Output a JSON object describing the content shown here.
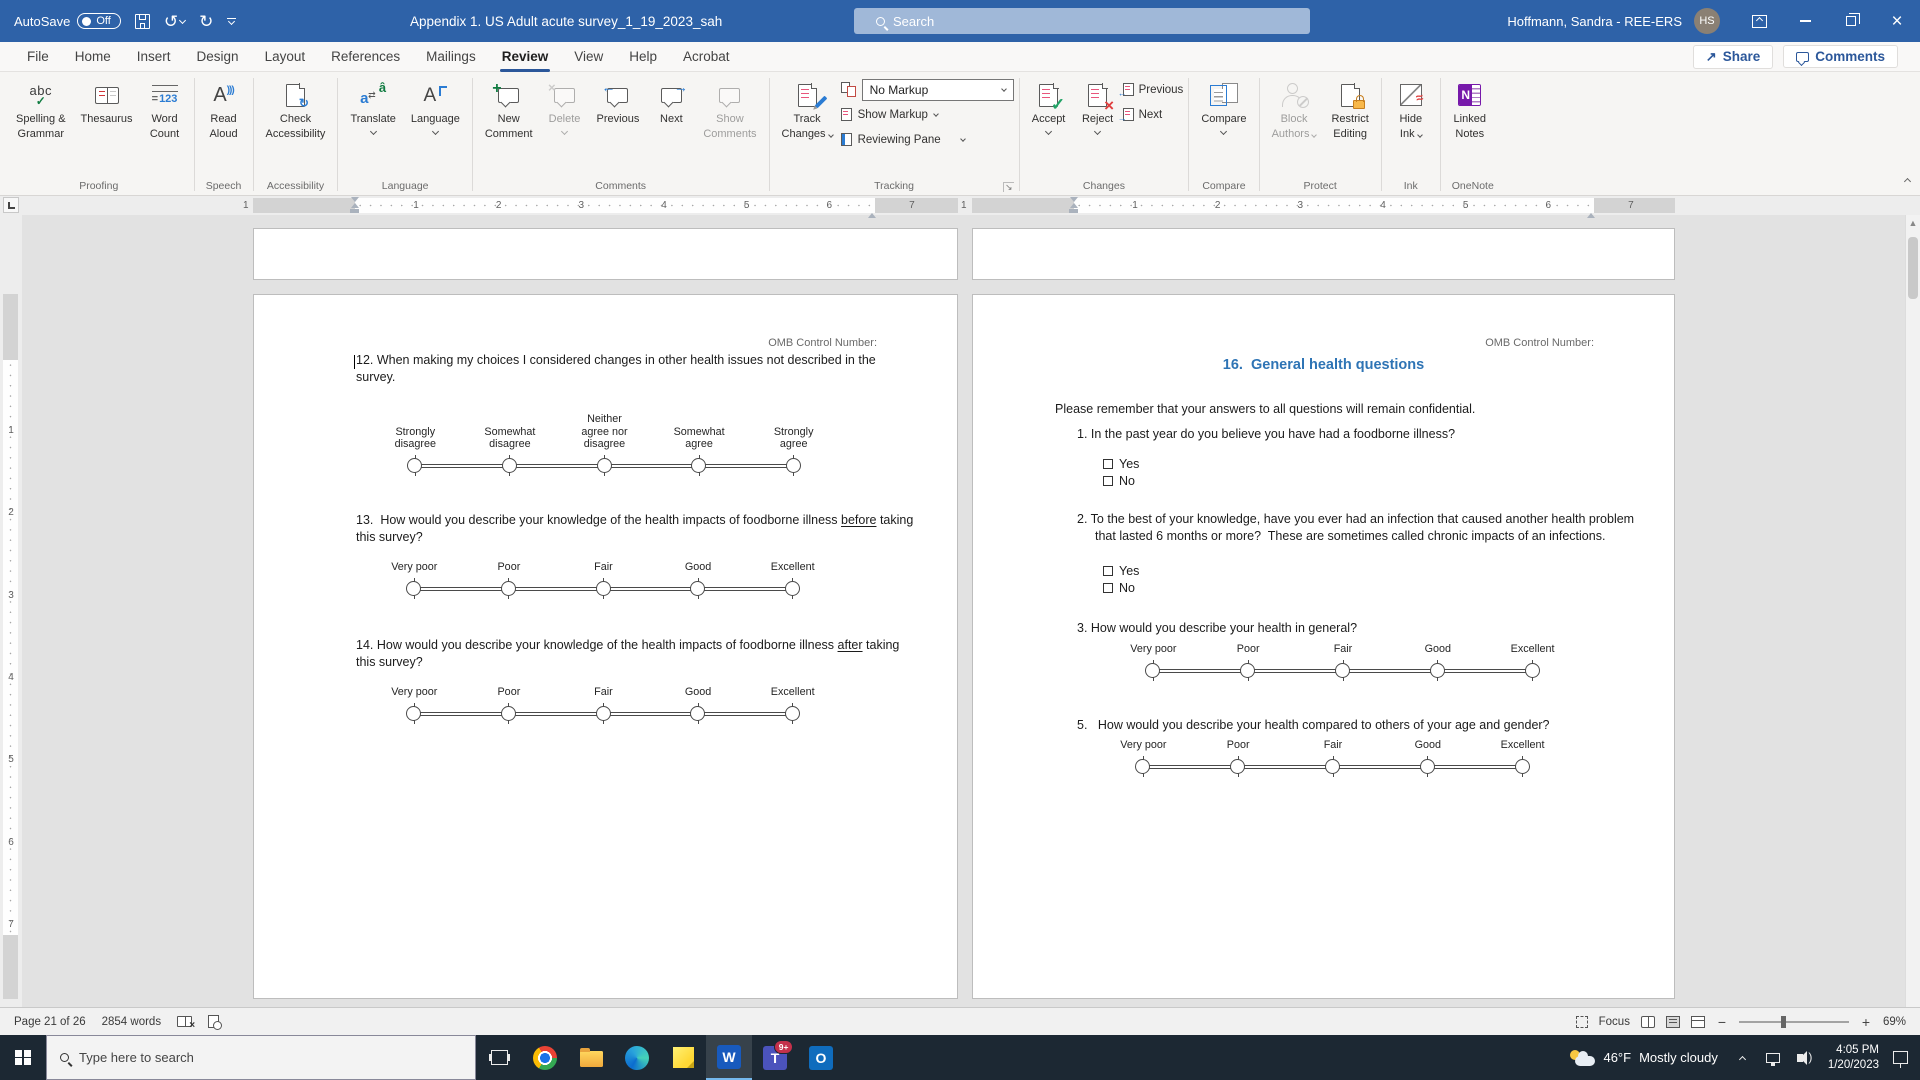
{
  "title_bar": {
    "autosave_label": "AutoSave",
    "autosave_state": "Off",
    "doc_title": "Appendix 1. US Adult acute survey_1_19_2023_sah",
    "search_placeholder": "Search",
    "user_name": "Hoffmann, Sandra - REE-ERS",
    "user_initials": "HS"
  },
  "ribbon": {
    "tabs": [
      "File",
      "Home",
      "Insert",
      "Design",
      "Layout",
      "References",
      "Mailings",
      "Review",
      "View",
      "Help",
      "Acrobat"
    ],
    "active_tab": "Review",
    "share_label": "Share",
    "comments_label": "Comments",
    "proofing": {
      "label": "Proofing",
      "spelling1": "Spelling &",
      "spelling2": "Grammar",
      "thesaurus": "Thesaurus",
      "word_count1": "Word",
      "word_count2": "Count"
    },
    "speech": {
      "label": "Speech",
      "read_aloud1": "Read",
      "read_aloud2": "Aloud"
    },
    "accessibility": {
      "label": "Accessibility",
      "check1": "Check",
      "check2": "Accessibility"
    },
    "language": {
      "label": "Language",
      "translate": "Translate",
      "language": "Language"
    },
    "comments": {
      "label": "Comments",
      "new1": "New",
      "new2": "Comment",
      "delete": "Delete",
      "previous": "Previous",
      "next": "Next",
      "show1": "Show",
      "show2": "Comments"
    },
    "tracking": {
      "label": "Tracking",
      "track1": "Track",
      "track2": "Changes",
      "markup_view": "No Markup",
      "show_markup": "Show Markup",
      "reviewing_pane": "Reviewing Pane"
    },
    "changes": {
      "label": "Changes",
      "accept": "Accept",
      "reject": "Reject",
      "previous": "Previous",
      "next": "Next"
    },
    "compare": {
      "label": "Compare",
      "compare": "Compare"
    },
    "protect": {
      "label": "Protect",
      "block1": "Block",
      "block2": "Authors",
      "restrict1": "Restrict",
      "restrict2": "Editing"
    },
    "ink": {
      "label": "Ink",
      "hide1": "Hide",
      "hide2": "Ink"
    },
    "onenote": {
      "label": "OneNote",
      "linked1": "Linked",
      "linked2": "Notes"
    }
  },
  "ruler": {
    "h_numbers": [
      "1",
      "2",
      "3",
      "4",
      "5",
      "6",
      "7"
    ],
    "margin_number": "1",
    "v_numbers": [
      "1",
      "2",
      "3",
      "4",
      "5",
      "6",
      "7"
    ]
  },
  "document": {
    "left_page": {
      "omb": "OMB Control Number:",
      "q12": "12. When making my choices I considered changes in other health issues not described in the survey.",
      "q13_pre": "13.  How would you describe your knowledge of the health impacts of foodborne illness ",
      "q13_u": "before",
      "q13_post": " taking",
      "q13_line2": "this survey?",
      "q14_pre": "14. How would you describe your knowledge of the health impacts of foodborne illness ",
      "q14_u": "after",
      "q14_post": " taking",
      "q14_line2": "this survey?"
    },
    "right_page": {
      "omb": "OMB Control Number:",
      "heading": "16.  General health questions",
      "intro": "Please remember that your answers to all questions will remain confidential.",
      "q1": "1. In the past year do you believe you have had a foodborne illness?",
      "yes": "Yes",
      "no": "No",
      "q2_line1": "2. To the best of your knowledge, have you ever had an infection that caused another health problem",
      "q2_line2": "that lasted 6 months or more?  These are sometimes called chronic impacts of an infections.",
      "q3": "3. How would you describe your health in general?",
      "q5": "5.   How would you describe your health compared to others of your age and gender?"
    }
  },
  "scales": {
    "agree": [
      "Strongly\ndisagree",
      "Somewhat\ndisagree",
      "Neither\nagree nor\ndisagree",
      "Somewhat\nagree",
      "Strongly\nagree"
    ],
    "quality": [
      "Very poor",
      "Poor",
      "Fair",
      "Good",
      "Excellent"
    ]
  },
  "status_bar": {
    "page_info": "Page 21 of 26",
    "word_count": "2854 words",
    "focus": "Focus",
    "zoom": "69%"
  },
  "taskbar": {
    "search_placeholder": "Type here to search",
    "weather_temp": "46°F",
    "weather_desc": "Mostly cloudy",
    "teams_badge": "9+",
    "time": "4:05 PM",
    "date": "1/20/2023"
  }
}
